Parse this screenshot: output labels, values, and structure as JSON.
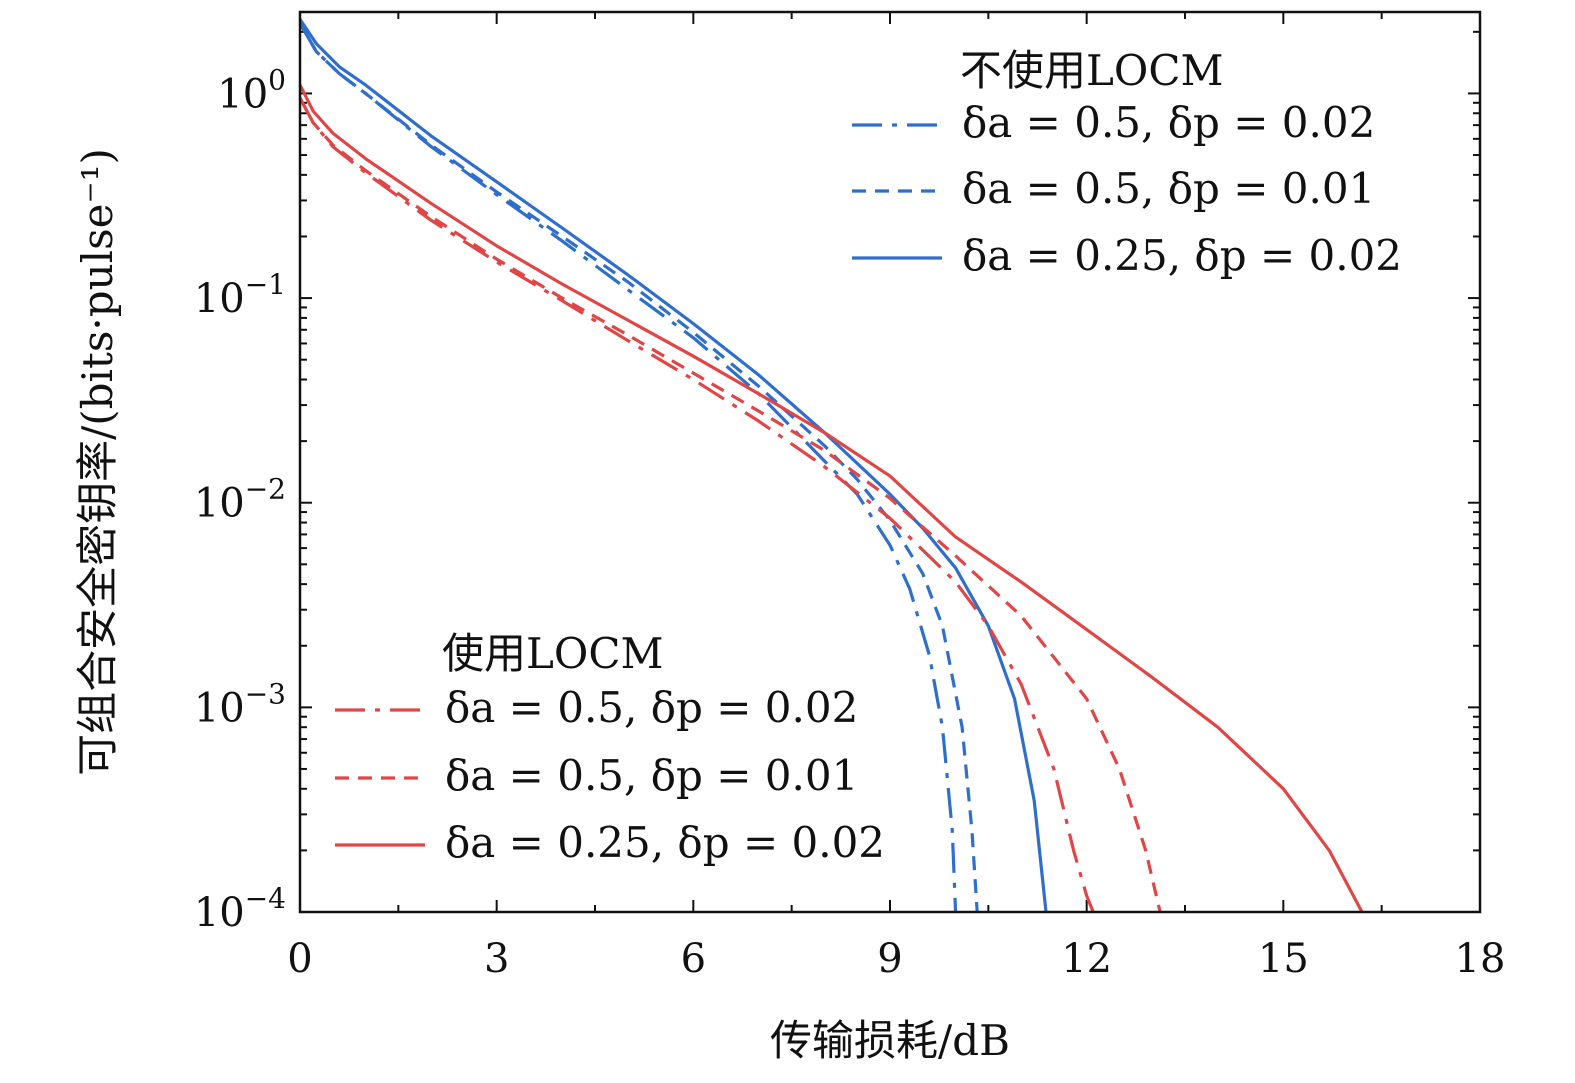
{
  "chart_data": {
    "type": "line",
    "xlabel": "传输损耗/dB",
    "ylabel": "可组合安全密钥率/(bits·pulse⁻¹)",
    "xlim": [
      0,
      18
    ],
    "ylim": [
      0.0001,
      2.5
    ],
    "yscale": "log",
    "xticks": [
      0,
      3,
      6,
      9,
      12,
      15,
      18
    ],
    "yticks": [
      {
        "value": 1,
        "base": "10",
        "exp": "0"
      },
      {
        "value": 0.1,
        "base": "10",
        "exp": "−1"
      },
      {
        "value": 0.01,
        "base": "10",
        "exp": "−2"
      },
      {
        "value": 0.001,
        "base": "10",
        "exp": "−3"
      },
      {
        "value": 0.0001,
        "base": "10",
        "exp": "−4"
      }
    ],
    "legends": [
      {
        "title": "不使用LOCM",
        "placement": "top-right"
      },
      {
        "title": "使用LOCM",
        "placement": "bottom-left"
      }
    ],
    "series": [
      {
        "name": "δa = 0.5, δp = 0.02",
        "group": "不使用LOCM",
        "color": "#2f6fcc",
        "style": "dashdot",
        "x": [
          0,
          0.25,
          0.6,
          1,
          2,
          3,
          4,
          5,
          6,
          7,
          8,
          8.5,
          9,
          9.3,
          9.6,
          9.8,
          9.95,
          10.0
        ],
        "y": [
          2.2,
          1.6,
          1.25,
          1.0,
          0.55,
          0.32,
          0.19,
          0.11,
          0.064,
          0.034,
          0.016,
          0.011,
          0.0062,
          0.0038,
          0.0018,
          0.0008,
          0.00025,
          0.0001
        ]
      },
      {
        "name": "δa = 0.5, δp = 0.01",
        "group": "不使用LOCM",
        "color": "#2f6fcc",
        "style": "dashed",
        "x": [
          0,
          0.25,
          0.6,
          1,
          2,
          3,
          4,
          5,
          6,
          7,
          8,
          8.5,
          9,
          9.5,
          9.8,
          10.1,
          10.25,
          10.33
        ],
        "y": [
          2.2,
          1.6,
          1.25,
          1.0,
          0.56,
          0.33,
          0.2,
          0.12,
          0.068,
          0.037,
          0.019,
          0.013,
          0.0082,
          0.0045,
          0.0025,
          0.0008,
          0.00025,
          0.0001
        ]
      },
      {
        "name": "δa = 0.25, δp = 0.02",
        "group": "不使用LOCM",
        "color": "#2f6fcc",
        "style": "solid",
        "x": [
          0,
          0.25,
          0.6,
          1,
          2,
          3,
          4,
          5,
          6,
          7,
          8,
          9,
          9.5,
          10,
          10.5,
          10.9,
          11.2,
          11.38
        ],
        "y": [
          2.3,
          1.75,
          1.35,
          1.1,
          0.62,
          0.37,
          0.22,
          0.13,
          0.075,
          0.042,
          0.022,
          0.011,
          0.0075,
          0.0048,
          0.0025,
          0.0011,
          0.00035,
          0.0001
        ]
      },
      {
        "name": "δa = 0.5, δp = 0.02",
        "group": "使用LOCM",
        "color": "#e04646",
        "style": "dashdot",
        "x": [
          0,
          0.2,
          0.5,
          1,
          2,
          3,
          4,
          5,
          6,
          7,
          8,
          9,
          10,
          10.5,
          11,
          11.5,
          11.8,
          12.0,
          12.1
        ],
        "y": [
          0.95,
          0.72,
          0.55,
          0.41,
          0.24,
          0.15,
          0.097,
          0.062,
          0.04,
          0.025,
          0.015,
          0.0084,
          0.0041,
          0.0025,
          0.0013,
          0.0005,
          0.0002,
          0.00012,
          0.0001
        ]
      },
      {
        "name": "δa = 0.5, δp = 0.01",
        "group": "使用LOCM",
        "color": "#e04646",
        "style": "dashed",
        "x": [
          0,
          0.2,
          0.5,
          1,
          2,
          3,
          4,
          5,
          6,
          7,
          8,
          9,
          10,
          11,
          12,
          12.5,
          12.9,
          13.12
        ],
        "y": [
          0.95,
          0.72,
          0.56,
          0.42,
          0.25,
          0.155,
          0.1,
          0.066,
          0.043,
          0.028,
          0.018,
          0.0105,
          0.0055,
          0.0028,
          0.0011,
          0.0005,
          0.0002,
          0.0001
        ]
      },
      {
        "name": "δa = 0.25, δp = 0.02",
        "group": "使用LOCM",
        "color": "#e04646",
        "style": "solid",
        "x": [
          0,
          0.2,
          0.5,
          1,
          2,
          3,
          4,
          5,
          6,
          7,
          8,
          9,
          10,
          11,
          12,
          13,
          14,
          15,
          15.7,
          16.2
        ],
        "y": [
          1.1,
          0.82,
          0.64,
          0.48,
          0.29,
          0.18,
          0.117,
          0.078,
          0.052,
          0.034,
          0.022,
          0.0135,
          0.0068,
          0.0041,
          0.0024,
          0.0014,
          0.0008,
          0.0004,
          0.0002,
          0.0001
        ]
      }
    ]
  }
}
